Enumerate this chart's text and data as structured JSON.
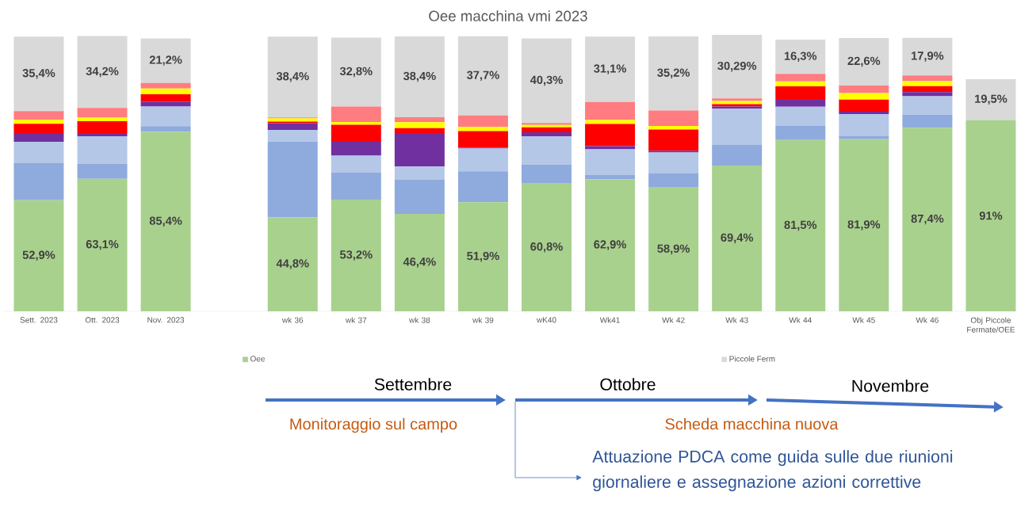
{
  "chart_data": {
    "type": "bar",
    "stacked": true,
    "title": "Oee macchina vmi 2023",
    "categories": [
      "Sett. 2023",
      "Ott. 2023",
      "Nov. 2023",
      null,
      "wk 36",
      "wk 37",
      "wk 38",
      "wk 39",
      "wK40",
      "Wk41",
      "Wk 42",
      "Wk 43",
      "Wk 44",
      "Wk 45",
      "Wk 46",
      "Obj Piccole Fermate/OEE"
    ],
    "tick_labels": "x",
    "legend": "bottom",
    "series": [
      {
        "name": "Oee",
        "color": "#a9d18e",
        "values": [
          52.9,
          63.1,
          85.4,
          null,
          44.8,
          53.2,
          46.4,
          51.9,
          60.8,
          62.9,
          58.9,
          69.4,
          81.5,
          81.9,
          87.4,
          91
        ],
        "value_labels": [
          "52,9%",
          "63,1%",
          "85,4%",
          null,
          "44,8%",
          "53,2%",
          "46,4%",
          "51,9%",
          "60,8%",
          "62,9%",
          "58,9%",
          "69,4%",
          "81,5%",
          "81,9%",
          "87,4%",
          "91%"
        ]
      },
      {
        "color": "#8faadc",
        "values": [
          17.8,
          7.1,
          2.7,
          null,
          36.0,
          12.8,
          16.2,
          14.7,
          9.0,
          1.9,
          6.9,
          10.0,
          6.9,
          1.4,
          6.2,
          null
        ]
      },
      {
        "color": "#b4c7e7",
        "values": [
          10.0,
          13.1,
          9.4,
          null,
          5.5,
          8.1,
          6.3,
          10.9,
          13.5,
          12.3,
          9.8,
          17.1,
          9.0,
          10.5,
          8.8,
          null
        ]
      },
      {
        "color": "#7030a0",
        "values": [
          3.8,
          1.5,
          2.3,
          null,
          3.2,
          6.6,
          15.9,
          0.4,
          1.9,
          1.5,
          0.8,
          1.0,
          3.6,
          1.2,
          1.9,
          null
        ]
      },
      {
        "color": "#ff0000",
        "values": [
          4.8,
          5.7,
          3.5,
          null,
          0.8,
          8.1,
          2.4,
          7.9,
          2.4,
          10.6,
          10.1,
          1.1,
          6.1,
          5.8,
          2.9,
          null
        ]
      },
      {
        "color": "#ffff00",
        "values": [
          1.9,
          1.7,
          2.7,
          null,
          1.5,
          1.3,
          2.8,
          2.0,
          1.1,
          1.9,
          1.7,
          1.5,
          2.3,
          3.1,
          2.3,
          null
        ]
      },
      {
        "color": "#ff7c80",
        "values": [
          4.1,
          4.6,
          2.7,
          null,
          0.5,
          7.4,
          2.4,
          5.4,
          0.9,
          8.5,
          7.4,
          1.2,
          3.6,
          3.6,
          2.8,
          null
        ]
      },
      {
        "name": "Piccole Ferm",
        "color": "#d9d9d9",
        "values": [
          35.4,
          34.2,
          21.2,
          null,
          38.4,
          32.8,
          38.4,
          37.7,
          40.3,
          31.1,
          35.2,
          30.29,
          16.3,
          22.6,
          17.9,
          19.5
        ],
        "value_labels": [
          "35,4%",
          "34,2%",
          "21,2%",
          null,
          "38,4%",
          "32,8%",
          "38,4%",
          "37,7%",
          "40,3%",
          "31,1%",
          "35,2%",
          "30,29%",
          "16,3%",
          "22,6%",
          "17,9%",
          "19,5%"
        ]
      }
    ],
    "annotations": [
      "Settembre",
      "Ottobre",
      "Novembre",
      "Monitoraggio sul campo",
      "Scheda macchina nuova",
      "Attuazione PDCA come guida sulle due riunioni giornaliere e assegnazione azioni correttive"
    ]
  }
}
